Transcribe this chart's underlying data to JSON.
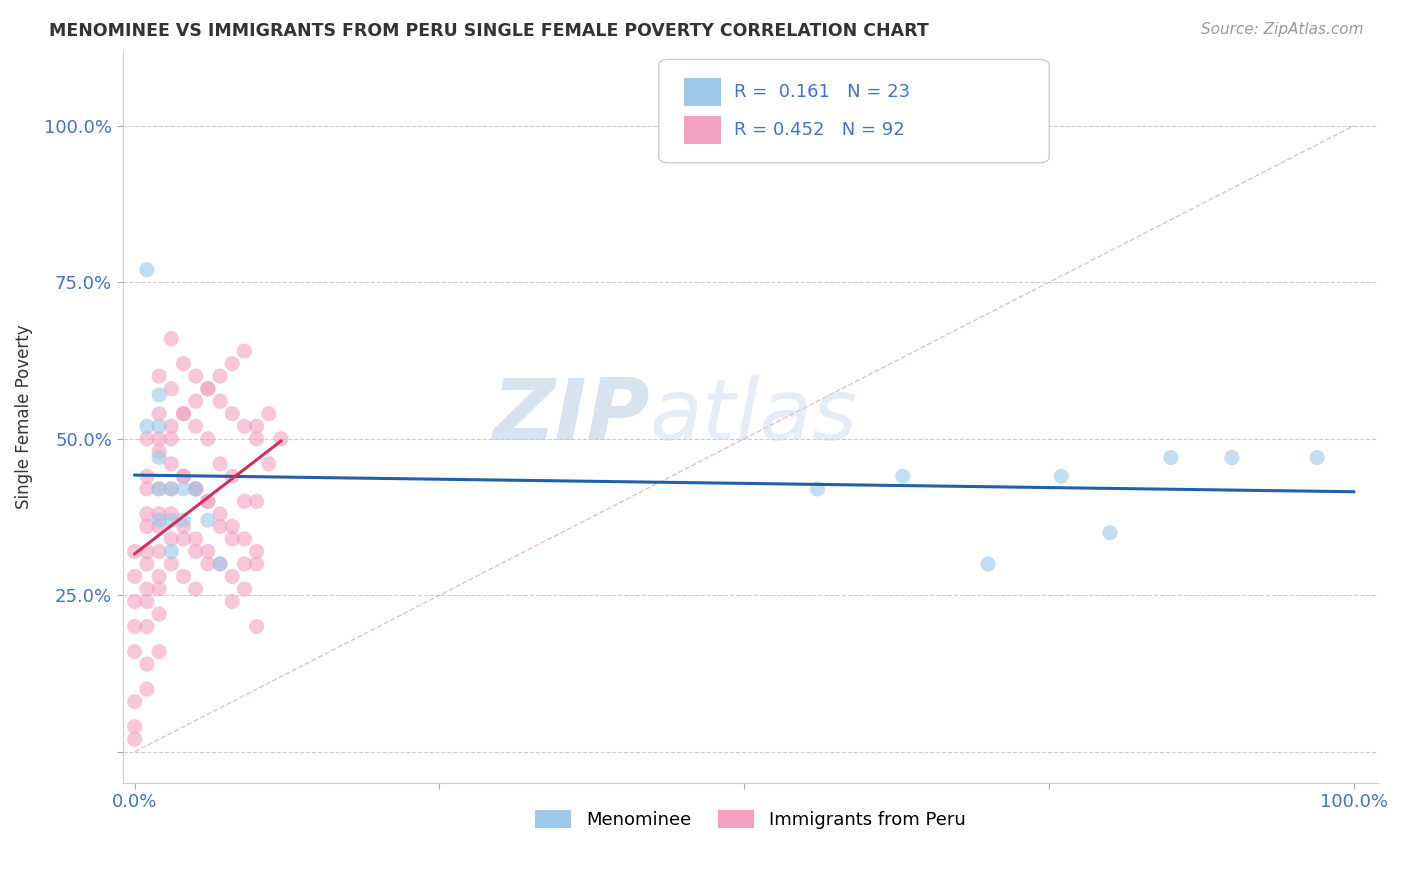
{
  "title": "MENOMINEE VS IMMIGRANTS FROM PERU SINGLE FEMALE POVERTY CORRELATION CHART",
  "source": "Source: ZipAtlas.com",
  "ylabel_label": "Single Female Poverty",
  "legend_label1": "Menominee",
  "legend_label2": "Immigrants from Peru",
  "R1": 0.161,
  "N1": 23,
  "R2": 0.452,
  "N2": 92,
  "color_blue": "#9ec8e8",
  "color_pink": "#f4a0c0",
  "trendline_blue": "#2060a8",
  "trendline_pink": "#d03060",
  "diag_line_color": "#e0b0c0",
  "watermark_color": "#ccddf0",
  "background": "#ffffff",
  "grid_color": "#cccccc",
  "text_color": "#333333",
  "axis_label_color": "#4472c4",
  "menominee_x": [
    0.01,
    0.01,
    0.02,
    0.02,
    0.02,
    0.02,
    0.02,
    0.03,
    0.03,
    0.03,
    0.04,
    0.04,
    0.05,
    0.06,
    0.07,
    0.56,
    0.63,
    0.7,
    0.76,
    0.8,
    0.85,
    0.9,
    0.97
  ],
  "menominee_y": [
    0.77,
    0.52,
    0.57,
    0.52,
    0.47,
    0.42,
    0.37,
    0.42,
    0.37,
    0.32,
    0.42,
    0.37,
    0.42,
    0.37,
    0.3,
    0.42,
    0.44,
    0.3,
    0.44,
    0.35,
    0.47,
    0.47,
    0.47
  ],
  "peru_x": [
    0.0,
    0.0,
    0.0,
    0.0,
    0.0,
    0.01,
    0.01,
    0.01,
    0.01,
    0.01,
    0.01,
    0.01,
    0.01,
    0.02,
    0.02,
    0.02,
    0.02,
    0.02,
    0.02,
    0.02,
    0.02,
    0.03,
    0.03,
    0.03,
    0.03,
    0.03,
    0.04,
    0.04,
    0.04,
    0.04,
    0.05,
    0.05,
    0.05,
    0.05,
    0.06,
    0.06,
    0.06,
    0.06,
    0.07,
    0.07,
    0.07,
    0.08,
    0.08,
    0.08,
    0.08,
    0.09,
    0.09,
    0.09,
    0.1,
    0.1,
    0.1,
    0.1,
    0.0,
    0.0,
    0.0,
    0.01,
    0.01,
    0.01,
    0.01,
    0.02,
    0.02,
    0.02,
    0.03,
    0.03,
    0.03,
    0.04,
    0.04,
    0.04,
    0.05,
    0.05,
    0.05,
    0.06,
    0.06,
    0.07,
    0.07,
    0.08,
    0.08,
    0.09,
    0.09,
    0.1,
    0.02,
    0.03,
    0.04,
    0.05,
    0.06,
    0.07,
    0.08,
    0.09,
    0.1,
    0.11,
    0.11,
    0.12
  ],
  "peru_y": [
    0.32,
    0.28,
    0.24,
    0.2,
    0.16,
    0.5,
    0.44,
    0.38,
    0.32,
    0.26,
    0.2,
    0.14,
    0.1,
    0.6,
    0.54,
    0.48,
    0.42,
    0.36,
    0.28,
    0.22,
    0.16,
    0.66,
    0.58,
    0.5,
    0.42,
    0.34,
    0.62,
    0.54,
    0.44,
    0.34,
    0.6,
    0.52,
    0.42,
    0.32,
    0.58,
    0.5,
    0.4,
    0.3,
    0.56,
    0.46,
    0.36,
    0.54,
    0.44,
    0.34,
    0.24,
    0.52,
    0.4,
    0.3,
    0.5,
    0.4,
    0.3,
    0.2,
    0.08,
    0.04,
    0.02,
    0.42,
    0.36,
    0.3,
    0.24,
    0.38,
    0.32,
    0.26,
    0.46,
    0.38,
    0.3,
    0.44,
    0.36,
    0.28,
    0.42,
    0.34,
    0.26,
    0.4,
    0.32,
    0.38,
    0.3,
    0.36,
    0.28,
    0.34,
    0.26,
    0.32,
    0.5,
    0.52,
    0.54,
    0.56,
    0.58,
    0.6,
    0.62,
    0.64,
    0.52,
    0.54,
    0.46,
    0.5
  ],
  "xlim": [
    -0.01,
    1.02
  ],
  "ylim": [
    -0.05,
    1.12
  ],
  "xticks": [
    0.0,
    0.25,
    0.5,
    0.75,
    1.0
  ],
  "yticks": [
    0.0,
    0.25,
    0.5,
    0.75,
    1.0
  ]
}
